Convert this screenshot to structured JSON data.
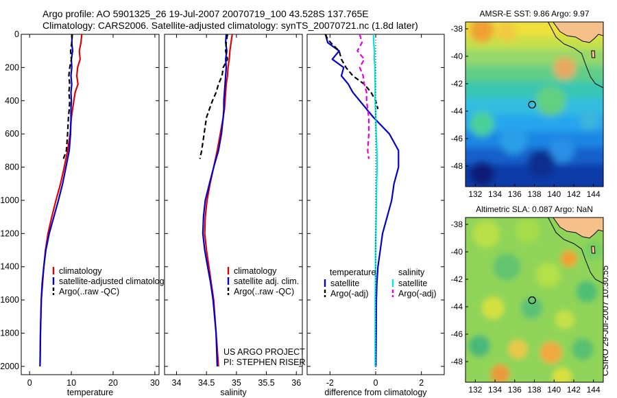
{
  "header": {
    "line1": "Argo profile: AO 5901325_26 19-Jul-2007 20070719_100 43.528S 137.765E",
    "line2": "Climatology: CARS2006. Satellite-adjusted climatology: synTS_20070721.nc (1.8d later)"
  },
  "stamp": "CSIRO 29-Jul-2007 10:30:55",
  "colors": {
    "red": "#e00000",
    "blue": "#0000cc",
    "black": "#000000",
    "cyan": "#00e6e6",
    "magenta": "#e600e6"
  },
  "chart_data": [
    {
      "type": "line",
      "xlabel": "temperature",
      "ylabel": "",
      "xlim": [
        -2,
        31
      ],
      "ylim": [
        2050,
        0
      ],
      "xticks": [
        0,
        10,
        20,
        30
      ],
      "yticks": [
        0,
        200,
        400,
        600,
        800,
        1000,
        1200,
        1400,
        1600,
        1800,
        2000
      ],
      "series": [
        {
          "name": "climatology",
          "color": "red",
          "dash": "solid",
          "x": [
            12.5,
            12.3,
            11.9,
            12.1,
            11.5,
            11.3,
            11.6,
            10.9,
            10.6,
            10.3,
            10.0,
            9.7,
            9.1,
            8.3,
            7.4,
            6.3,
            5.3,
            4.4,
            3.8,
            3.4,
            3.1,
            2.8,
            2.6,
            2.5
          ],
          "y": [
            0,
            50,
            100,
            150,
            200,
            250,
            300,
            350,
            400,
            450,
            500,
            600,
            700,
            800,
            900,
            1000,
            1100,
            1200,
            1300,
            1400,
            1500,
            1600,
            1800,
            2000
          ]
        },
        {
          "name": "satellite-adjusted climatology",
          "color": "blue",
          "dash": "solid",
          "x": [
            10.2,
            10.1,
            10.3,
            10.0,
            10.1,
            9.9,
            10.1,
            9.9,
            10.0,
            9.9,
            9.9,
            9.8,
            9.5,
            8.7,
            7.9,
            6.9,
            5.8,
            4.7,
            3.9,
            3.4,
            3.0,
            2.8,
            2.6,
            2.5
          ],
          "y": [
            0,
            50,
            100,
            150,
            200,
            250,
            300,
            350,
            400,
            450,
            500,
            600,
            700,
            800,
            900,
            1000,
            1100,
            1200,
            1300,
            1400,
            1500,
            1600,
            1800,
            2000
          ]
        },
        {
          "name": "Argo(..raw -QC)",
          "color": "black",
          "dash": "dashed",
          "x": [
            10.2,
            10.1,
            9.8,
            10.0,
            9.6,
            9.4,
            9.6,
            9.4,
            9.6,
            9.5,
            9.3,
            9.1,
            8.8,
            8.1
          ],
          "y": [
            0,
            50,
            100,
            150,
            200,
            250,
            300,
            350,
            400,
            450,
            500,
            600,
            700,
            750
          ]
        }
      ]
    },
    {
      "type": "line",
      "xlabel": "salinity",
      "ylabel": "",
      "xlim": [
        33.8,
        36.1
      ],
      "ylim": [
        2050,
        0
      ],
      "xticks": [
        34,
        34.5,
        35,
        35.5,
        36
      ],
      "yticks": [
        0,
        200,
        400,
        600,
        800,
        1000,
        1200,
        1400,
        1600,
        1800,
        2000
      ],
      "series": [
        {
          "name": "climatology",
          "color": "red",
          "dash": "solid",
          "x": [
            34.93,
            34.91,
            34.89,
            34.88,
            34.86,
            34.85,
            34.83,
            34.82,
            34.81,
            34.8,
            34.78,
            34.73,
            34.68,
            34.62,
            34.56,
            34.51,
            34.48,
            34.47,
            34.5,
            34.54,
            34.58,
            34.62,
            34.66,
            34.7
          ],
          "y": [
            0,
            50,
            100,
            150,
            200,
            250,
            300,
            350,
            400,
            450,
            500,
            600,
            700,
            800,
            900,
            1000,
            1100,
            1200,
            1300,
            1400,
            1500,
            1600,
            1800,
            2000
          ]
        },
        {
          "name": "satellite adj. clim.",
          "color": "blue",
          "dash": "solid",
          "x": [
            34.83,
            34.82,
            34.84,
            34.82,
            34.83,
            34.82,
            34.81,
            34.8,
            34.79,
            34.79,
            34.78,
            34.75,
            34.7,
            34.62,
            34.55,
            34.48,
            34.45,
            34.44,
            34.47,
            34.52,
            34.57,
            34.61,
            34.66,
            34.68
          ],
          "y": [
            0,
            50,
            100,
            150,
            200,
            250,
            300,
            350,
            400,
            450,
            500,
            600,
            700,
            800,
            900,
            1000,
            1100,
            1200,
            1300,
            1400,
            1500,
            1600,
            1800,
            2000
          ]
        },
        {
          "name": "Argo(..raw -QC)",
          "color": "black",
          "dash": "dashed",
          "x": [
            34.85,
            34.83,
            34.82,
            34.85,
            34.78,
            34.76,
            34.7,
            34.66,
            34.6,
            34.55,
            34.5,
            34.46,
            34.42,
            34.39
          ],
          "y": [
            0,
            50,
            100,
            150,
            200,
            250,
            300,
            350,
            400,
            450,
            500,
            600,
            700,
            750
          ]
        }
      ],
      "annotation": [
        "US ARGO PROJECT",
        "PI: STEPHEN RISER"
      ]
    },
    {
      "type": "line",
      "xlabel": "difference from climatology",
      "ylabel": "",
      "xlim": [
        -3,
        3
      ],
      "ylim": [
        2050,
        0
      ],
      "xticks": [
        -2,
        0,
        2
      ],
      "yticks": [
        0,
        200,
        400,
        600,
        800,
        1000,
        1200,
        1400,
        1600,
        1800,
        2000
      ],
      "legend_titles": [
        "temperature",
        "salinity"
      ],
      "series": [
        {
          "name": "satellite",
          "group": "temperature",
          "color": "blue",
          "dash": "solid",
          "x": [
            -2.2,
            -2.1,
            -1.6,
            -1.9,
            -1.4,
            -1.5,
            -1.2,
            -1.0,
            -0.7,
            -0.4,
            -0.1,
            0.6,
            1.0,
            1.0,
            0.8,
            0.7,
            0.5,
            0.3,
            0.2,
            0.1,
            0.05,
            0.03,
            0.02,
            0.01
          ],
          "y": [
            0,
            50,
            100,
            150,
            200,
            250,
            300,
            350,
            400,
            450,
            500,
            600,
            700,
            800,
            900,
            1000,
            1100,
            1200,
            1300,
            1400,
            1500,
            1600,
            1800,
            2000
          ]
        },
        {
          "name": "Argo(-adj)",
          "group": "temperature",
          "color": "black",
          "dash": "dashed",
          "x": [
            -2.2,
            -2.1,
            -1.9,
            -1.6,
            -1.5,
            -1.3,
            -1.0,
            -0.5,
            -0.2,
            0.0,
            0.1
          ],
          "y": [
            0,
            30,
            60,
            100,
            150,
            200,
            250,
            300,
            350,
            400,
            450
          ]
        },
        {
          "name": "satellite",
          "group": "salinity",
          "color": "cyan",
          "dash": "solid",
          "x": [
            -0.1,
            -0.09,
            -0.05,
            -0.06,
            -0.03,
            -0.03,
            -0.02,
            -0.02,
            -0.02,
            -0.01,
            0.0,
            0.02,
            0.05,
            0.06,
            0.04,
            0.03,
            0.02,
            0.01,
            -0.01,
            -0.01,
            -0.01,
            -0.02,
            -0.02,
            -0.02
          ],
          "y": [
            0,
            50,
            100,
            150,
            200,
            250,
            300,
            350,
            400,
            450,
            500,
            600,
            700,
            800,
            900,
            1000,
            1100,
            1200,
            1300,
            1400,
            1500,
            1600,
            1800,
            2000
          ]
        },
        {
          "name": "Argo(-adj)",
          "group": "salinity",
          "color": "magenta",
          "dash": "dashed",
          "x": [
            -0.7,
            -0.6,
            -0.8,
            -0.5,
            -0.7,
            -0.55,
            -0.5,
            -0.4,
            -0.4,
            -0.35,
            -0.3,
            -0.3,
            -0.35,
            -0.3
          ],
          "y": [
            0,
            50,
            100,
            150,
            200,
            250,
            300,
            350,
            400,
            450,
            500,
            600,
            700,
            750
          ]
        },
        {
          "name": "",
          "color": "black",
          "dash": "dotted",
          "x": [
            0,
            0
          ],
          "y": [
            0,
            2050
          ]
        }
      ]
    },
    {
      "type": "heatmap",
      "title": "AMSR-E SST: 9.86 Argo: 9.97",
      "xlim": [
        131,
        145
      ],
      "ylim": [
        -49.5,
        -37.5
      ],
      "xticks": [
        132,
        134,
        136,
        138,
        140,
        142,
        144
      ],
      "yticks": [
        -38,
        -40,
        -42,
        -44,
        -46,
        -48
      ],
      "marker": {
        "lon": 137.765,
        "lat": -43.528
      }
    },
    {
      "type": "heatmap",
      "title": "Altimetric SLA: 0.087 Argo: NaN",
      "xlim": [
        131,
        145
      ],
      "ylim": [
        -49.5,
        -37.5
      ],
      "xticks": [
        132,
        134,
        136,
        138,
        140,
        142,
        144
      ],
      "yticks": [
        -38,
        -40,
        -42,
        -44,
        -46,
        -48
      ],
      "marker": {
        "lon": 137.765,
        "lat": -43.528
      }
    }
  ]
}
